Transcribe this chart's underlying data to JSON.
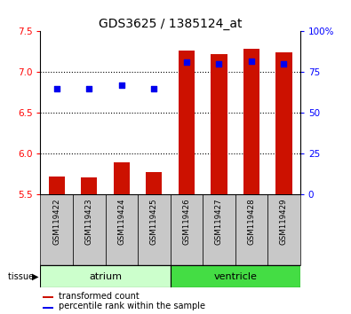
{
  "title": "GDS3625 / 1385124_at",
  "samples": [
    "GSM119422",
    "GSM119423",
    "GSM119424",
    "GSM119425",
    "GSM119426",
    "GSM119427",
    "GSM119428",
    "GSM119429"
  ],
  "transformed_count": [
    5.72,
    5.71,
    5.9,
    5.78,
    7.26,
    7.22,
    7.29,
    7.24
  ],
  "percentile_rank": [
    65,
    65,
    67,
    65,
    81,
    80,
    82,
    80
  ],
  "ylim_left": [
    5.5,
    7.5
  ],
  "ylim_right": [
    0,
    100
  ],
  "yticks_left": [
    5.5,
    6.0,
    6.5,
    7.0,
    7.5
  ],
  "yticks_right": [
    0,
    25,
    50,
    75,
    100
  ],
  "ytick_labels_right": [
    "0",
    "25",
    "50",
    "75",
    "100%"
  ],
  "bar_color": "#CC1100",
  "dot_color": "#0000EE",
  "bar_width": 0.5,
  "dot_size": 25,
  "background_color": "#FFFFFF",
  "plot_bg_color": "#FFFFFF",
  "sample_bg_color": "#C8C8C8",
  "atrium_color": "#CCFFCC",
  "ventricle_color": "#44DD44",
  "title_fontsize": 10,
  "tick_fontsize": 7.5,
  "label_fontsize": 7
}
